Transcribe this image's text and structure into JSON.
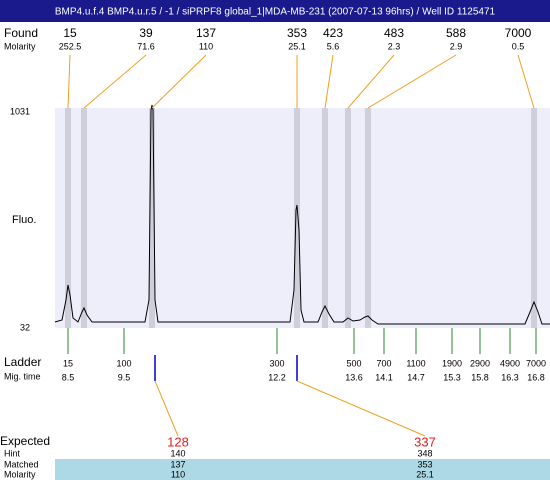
{
  "header": {
    "title": "BMP4.u.f.4  BMP4.u.r.5 / -1 / siPRPF8 global_1|MDA-MB-231 (2007-07-13 96hrs) / Well ID 1125471"
  },
  "found": {
    "label": "Found",
    "molarity_label": "Molarity",
    "sizes": [
      "15",
      "39",
      "137",
      "353",
      "423",
      "483",
      "588",
      "7000"
    ],
    "molarities": [
      "252.5",
      "71.6",
      "110",
      "25.1",
      "5.6",
      "2.3",
      "2.9",
      "0.5"
    ]
  },
  "y_axis": {
    "label": "Fluo.",
    "top": "1031",
    "bottom": "32"
  },
  "ladder": {
    "label": "Ladder",
    "time_label": "Mig. time",
    "sizes": [
      "15",
      "100",
      "300",
      "500",
      "700",
      "1100",
      "1900",
      "2900",
      "4900",
      "7000"
    ],
    "times": [
      "8.5",
      "9.5",
      "12.2",
      "13.6",
      "14.1",
      "14.7",
      "15.3",
      "15.8",
      "16.3",
      "16.8"
    ]
  },
  "expected": {
    "label": "Expected",
    "hint_label": "Hint",
    "matched_label": "Matched",
    "molarity_label": "Molarity",
    "values": [
      "128",
      "337"
    ],
    "hints": [
      "140",
      "348"
    ],
    "matched": [
      "137",
      "353"
    ],
    "molarities": [
      "110",
      "25.1"
    ]
  }
}
